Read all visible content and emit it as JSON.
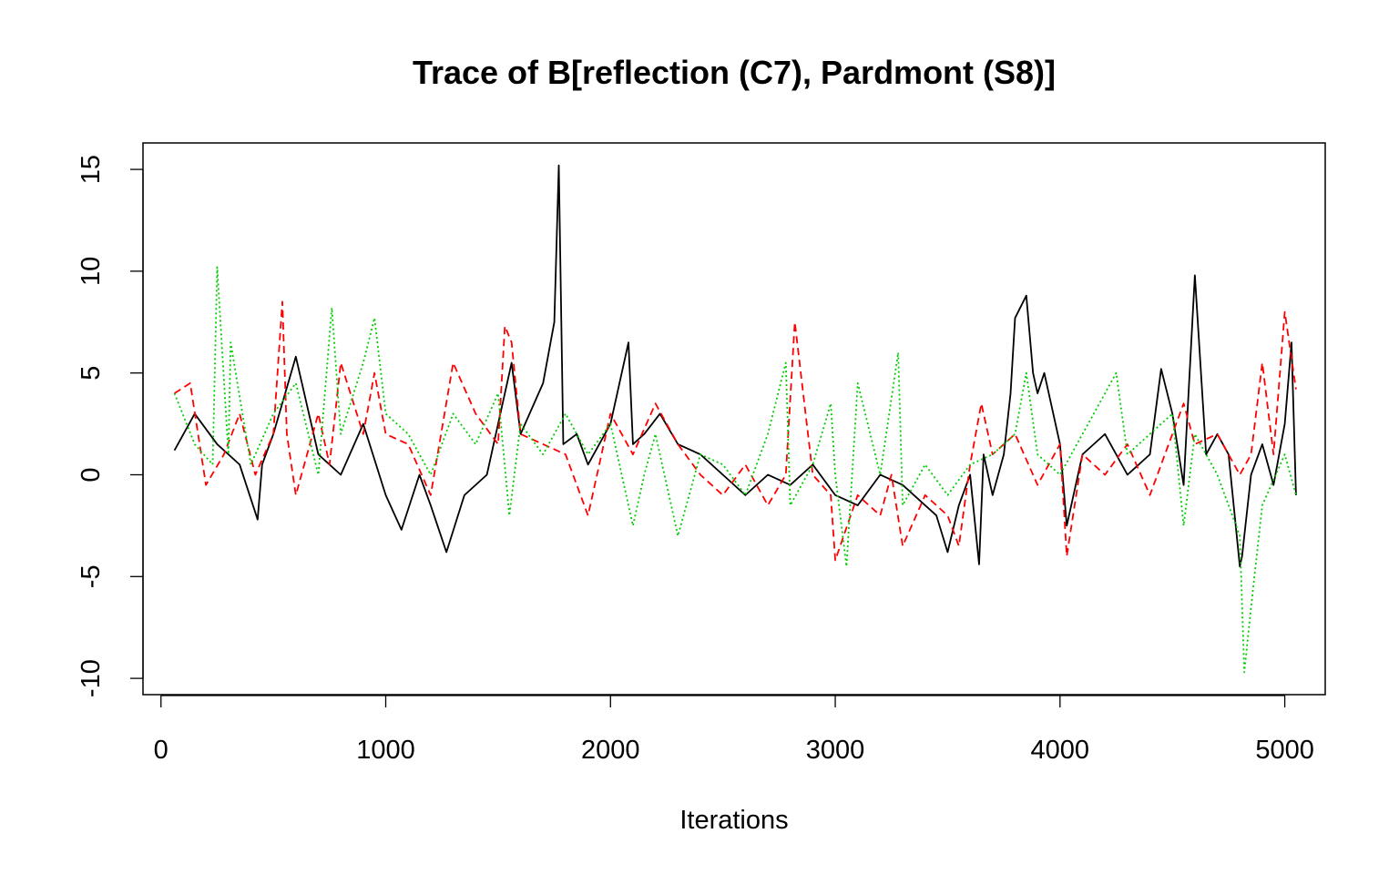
{
  "chart_data": {
    "type": "line",
    "title": "Trace of B[reflection (C7), Pardmont (S8)]",
    "xlabel": "Iterations",
    "ylabel": "",
    "xlim": [
      -80,
      5180
    ],
    "ylim": [
      -10.8,
      16.3
    ],
    "xticks": [
      0,
      1000,
      2000,
      3000,
      4000,
      5000
    ],
    "yticks": [
      -10,
      -5,
      0,
      5,
      10,
      15
    ],
    "grid": false,
    "legend": "none",
    "series": [
      {
        "color": "#000000",
        "dash": "",
        "x": [
          60,
          150,
          250,
          350,
          430,
          450,
          500,
          600,
          700,
          800,
          900,
          1000,
          1070,
          1150,
          1200,
          1270,
          1350,
          1450,
          1500,
          1560,
          1600,
          1700,
          1750,
          1770,
          1790,
          1850,
          1900,
          2000,
          2080,
          2100,
          2150,
          2220,
          2300,
          2400,
          2500,
          2600,
          2700,
          2800,
          2900,
          3000,
          3100,
          3200,
          3300,
          3400,
          3450,
          3500,
          3550,
          3600,
          3640,
          3660,
          3700,
          3750,
          3780,
          3800,
          3850,
          3880,
          3900,
          3930,
          4000,
          4030,
          4100,
          4200,
          4300,
          4400,
          4450,
          4500,
          4550,
          4600,
          4650,
          4700,
          4750,
          4800,
          4810,
          4850,
          4900,
          4950,
          5000,
          5030,
          5050
        ],
        "y": [
          1.2,
          3.0,
          1.5,
          0.5,
          -2.2,
          0.5,
          2.0,
          5.8,
          1.0,
          0.0,
          2.5,
          -1.0,
          -2.7,
          0.0,
          -1.5,
          -3.8,
          -1.0,
          0.0,
          2.5,
          5.5,
          2.0,
          4.5,
          7.5,
          15.2,
          1.5,
          2.0,
          0.5,
          2.5,
          6.5,
          1.5,
          2.0,
          3.0,
          1.5,
          1.0,
          0.0,
          -1.0,
          0.0,
          -0.5,
          0.5,
          -1.0,
          -1.5,
          0.0,
          -0.5,
          -1.5,
          -2.0,
          -3.8,
          -1.5,
          0.0,
          -4.4,
          1.0,
          -1.0,
          1.0,
          4.0,
          7.7,
          8.8,
          5.0,
          4.0,
          5.0,
          1.5,
          -2.5,
          1.0,
          2.0,
          0.0,
          1.0,
          5.2,
          3.0,
          -0.5,
          9.8,
          1.0,
          2.0,
          1.0,
          -4.5,
          -4.0,
          0.0,
          1.5,
          -0.5,
          2.5,
          6.5,
          -1.0
        ]
      },
      {
        "color": "#ff0000",
        "dash": "8,5",
        "x": [
          60,
          130,
          200,
          280,
          350,
          420,
          500,
          540,
          560,
          600,
          700,
          750,
          800,
          900,
          950,
          1000,
          1100,
          1200,
          1300,
          1400,
          1500,
          1530,
          1560,
          1600,
          1700,
          1800,
          1900,
          2000,
          2100,
          2200,
          2300,
          2400,
          2500,
          2600,
          2700,
          2780,
          2820,
          2900,
          2980,
          3000,
          3100,
          3200,
          3250,
          3300,
          3400,
          3500,
          3550,
          3600,
          3650,
          3700,
          3800,
          3900,
          4000,
          4030,
          4100,
          4200,
          4300,
          4400,
          4500,
          4550,
          4600,
          4700,
          4800,
          4850,
          4900,
          4950,
          5000,
          5050
        ],
        "y": [
          4.0,
          4.5,
          -0.5,
          1.0,
          3.0,
          0.0,
          2.0,
          8.5,
          2.0,
          -1.0,
          3.0,
          0.5,
          5.5,
          2.0,
          5.0,
          2.0,
          1.5,
          -1.0,
          5.5,
          3.0,
          1.5,
          7.3,
          6.5,
          2.0,
          1.5,
          1.0,
          -2.0,
          3.0,
          1.0,
          3.5,
          1.5,
          0.0,
          -1.0,
          0.5,
          -1.5,
          0.0,
          7.5,
          0.0,
          -1.0,
          -4.2,
          -1.0,
          -2.0,
          0.0,
          -3.5,
          -1.0,
          -2.0,
          -3.5,
          0.5,
          3.5,
          1.0,
          2.0,
          -0.5,
          1.5,
          -4.0,
          1.0,
          0.0,
          1.5,
          -1.0,
          2.0,
          3.5,
          1.5,
          2.0,
          0.0,
          1.0,
          5.5,
          1.0,
          8.0,
          4.2
        ]
      },
      {
        "color": "#00cd00",
        "dash": "2,3",
        "x": [
          60,
          150,
          230,
          250,
          300,
          310,
          400,
          500,
          600,
          700,
          760,
          800,
          900,
          950,
          1000,
          1100,
          1200,
          1300,
          1400,
          1500,
          1550,
          1600,
          1700,
          1800,
          1900,
          2000,
          2100,
          2150,
          2200,
          2300,
          2400,
          2500,
          2600,
          2700,
          2780,
          2800,
          2900,
          2980,
          3000,
          3050,
          3100,
          3200,
          3280,
          3300,
          3400,
          3500,
          3600,
          3700,
          3800,
          3850,
          3900,
          4000,
          4100,
          4200,
          4250,
          4300,
          4400,
          4500,
          4550,
          4600,
          4700,
          4800,
          4820,
          4850,
          4900,
          5000,
          5050
        ],
        "y": [
          4.0,
          1.5,
          0.5,
          10.2,
          1.0,
          6.5,
          0.5,
          3.0,
          4.5,
          0.0,
          8.2,
          2.0,
          5.5,
          7.7,
          3.0,
          2.0,
          0.0,
          3.0,
          1.5,
          4.0,
          -2.0,
          2.5,
          1.0,
          3.0,
          1.0,
          2.5,
          -2.5,
          0.0,
          2.0,
          -3.0,
          1.0,
          0.5,
          -1.0,
          2.0,
          5.5,
          -1.5,
          0.5,
          3.5,
          0.0,
          -4.5,
          4.5,
          0.0,
          6.0,
          -1.5,
          0.5,
          -1.0,
          0.5,
          1.0,
          2.0,
          5.0,
          1.0,
          0.0,
          2.0,
          4.0,
          5.0,
          1.0,
          2.0,
          3.0,
          -2.5,
          2.0,
          0.0,
          -3.0,
          -9.7,
          -6.5,
          -1.5,
          1.0,
          -1.0
        ]
      }
    ]
  }
}
